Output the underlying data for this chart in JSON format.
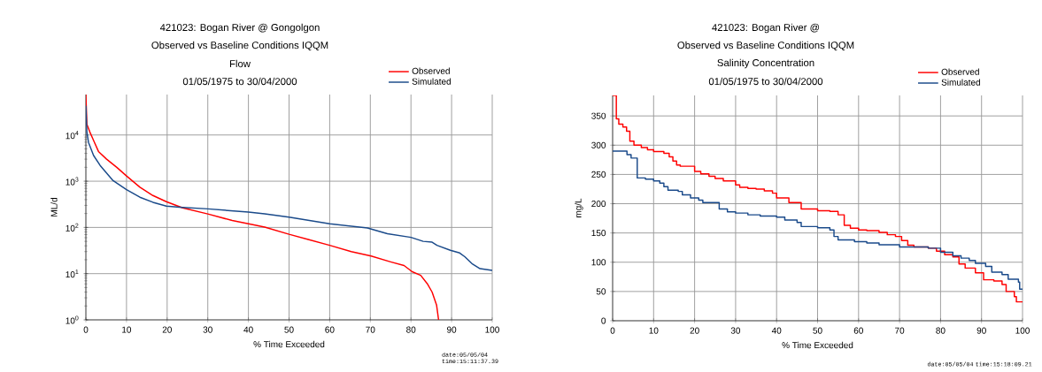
{
  "chart_data": [
    {
      "type": "line",
      "title": "421023: Bogan River @ Gongolgon",
      "subtitle": "Observed vs Baseline Conditions IQQM",
      "annotations": [
        "Flow",
        "01/05/1975 to 30/04/2000",
        "date:05/05/04 time:15:11:37.39"
      ],
      "xlabel": "% Time Exceeded",
      "ylabel": "ML/d",
      "log": "y",
      "grid": true,
      "legend": "top right",
      "xlim": [
        0,
        100
      ],
      "xticks": [
        0,
        10,
        20,
        30,
        40,
        50,
        60,
        70,
        80,
        90,
        100
      ],
      "ylim": [
        1,
        75000
      ],
      "yticks": [
        {
          "value": 1,
          "label": "10$^{0}$"
        },
        {
          "value": 10,
          "label": "10$^{1}$"
        },
        {
          "value": 100,
          "label": "10$^{2}$"
        },
        {
          "value": 1000,
          "label": "10$^{3}$"
        },
        {
          "value": 10000,
          "label": "10$^{4}$"
        }
      ],
      "series": [
        {
          "name": "Observed",
          "color": "#ff0000",
          "x": [
            0,
            0.25,
            1,
            1.9,
            3.1,
            5.1,
            7.6,
            10,
            13.3,
            16.5,
            19.8,
            23.8,
            30,
            36,
            40,
            44,
            50,
            54.7,
            60,
            65.3,
            70.2,
            75,
            78.3,
            80.3,
            82.4,
            84,
            85.2,
            86.3,
            86.8
          ],
          "values": [
            75000,
            17000,
            11500,
            7600,
            4400,
            3000,
            2000,
            1300,
            740,
            490,
            360,
            265,
            196,
            141,
            120,
            102,
            71,
            55,
            41,
            30,
            24,
            18,
            15,
            11,
            9.2,
            6.1,
            4,
            2.1,
            1
          ]
        },
        {
          "name": "Simulated",
          "color": "#1a4a8a",
          "x": [
            0,
            0.25,
            0.65,
            1.9,
            3.5,
            6.7,
            10,
            13.3,
            16.5,
            19.8,
            23,
            30,
            40,
            44,
            50,
            60,
            69.3,
            74.2,
            80,
            83,
            85.2,
            86.4,
            89.7,
            92,
            93.3,
            95,
            97,
            100
          ],
          "values": [
            43000,
            11500,
            6900,
            3600,
            2200,
            1030,
            660,
            450,
            350,
            290,
            275,
            252,
            215,
            196,
            167,
            120,
            97,
            73,
            61,
            50,
            48,
            41,
            32,
            28,
            23,
            16.5,
            12.8,
            11.8
          ]
        }
      ]
    },
    {
      "type": "step",
      "title": "421023: Bogan River @",
      "subtitle": "Observed vs Baseline Conditions IQQM",
      "annotations": [
        "Salinity Concentration",
        "01/05/1975 to 30/04/2000",
        "date:05/05/04 time:15:18:09.21"
      ],
      "xlabel": "% Time Exceeded",
      "ylabel": "mg/L",
      "grid": true,
      "legend": "top right",
      "xlim": [
        0,
        100
      ],
      "xticks": [
        0,
        10,
        20,
        30,
        40,
        50,
        60,
        70,
        80,
        90,
        100
      ],
      "ylim": [
        0,
        385
      ],
      "yticks": [
        0,
        50,
        100,
        150,
        200,
        250,
        300,
        350
      ],
      "series": [
        {
          "name": "Observed",
          "color": "#ff0000",
          "x": [
            0,
            0.9,
            1.5,
            2.5,
            3.4,
            4.2,
            5.2,
            7,
            8.5,
            10,
            12.5,
            13.8,
            14.7,
            15.6,
            16.5,
            20,
            21.5,
            23.5,
            25,
            27,
            30,
            31,
            33,
            35,
            37,
            39,
            40,
            43,
            46,
            50,
            53,
            55,
            56.5,
            58,
            60,
            62,
            65,
            67,
            69,
            70.5,
            72,
            73.5,
            77,
            79,
            81,
            83,
            84.5,
            86,
            88.5,
            90.5,
            93,
            95,
            96,
            98,
            98.5,
            100
          ],
          "values": [
            385,
            345,
            336,
            331,
            324,
            307,
            300,
            296,
            292,
            289,
            286,
            280,
            273,
            266,
            264,
            255,
            251,
            247,
            243,
            239,
            232,
            228,
            226,
            225,
            222,
            218,
            210,
            202,
            191,
            188,
            187,
            181,
            163,
            158,
            155,
            154,
            151,
            147,
            144,
            137,
            129,
            126,
            124,
            119,
            113,
            109,
            97,
            90,
            82,
            70,
            68,
            62,
            50,
            41,
            32,
            32
          ]
        },
        {
          "name": "Simulated",
          "color": "#1a4a8a",
          "x": [
            0,
            3.5,
            4.5,
            6,
            8,
            10,
            11.5,
            12.5,
            13.5,
            16,
            17,
            19,
            21,
            22,
            26,
            28,
            30,
            33,
            36,
            40,
            42,
            45,
            46,
            50,
            53,
            54,
            55,
            59,
            62,
            65,
            70,
            77,
            80,
            83,
            85,
            87,
            88.5,
            91,
            92.5,
            95,
            96.5,
            99,
            99.3,
            100
          ],
          "values": [
            290,
            284,
            278,
            244,
            242,
            239,
            235,
            229,
            223,
            221,
            215,
            210,
            206,
            202,
            191,
            186,
            184,
            181,
            179,
            177,
            172,
            168,
            161,
            159,
            155,
            144,
            138,
            135,
            133,
            130,
            126,
            124,
            117,
            111,
            107,
            103,
            98,
            93,
            83,
            79,
            71,
            66,
            54,
            54
          ]
        }
      ]
    }
  ]
}
